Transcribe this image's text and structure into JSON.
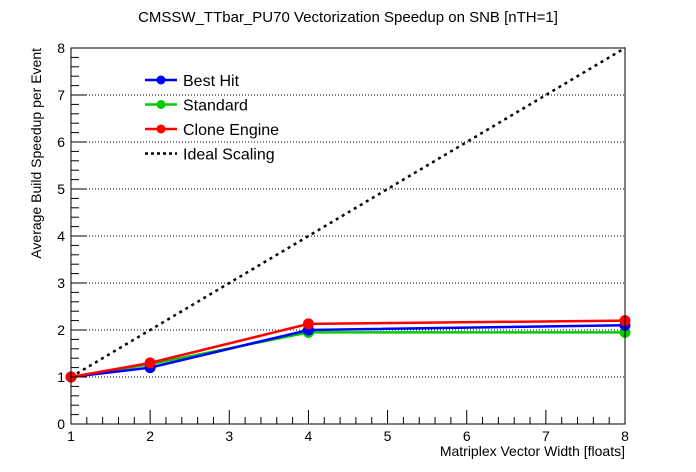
{
  "chart_data": {
    "type": "line",
    "title": "CMSSW_TTbar_PU70 Vectorization Speedup on SNB [nTH=1]",
    "xlabel": "Matriplex Vector Width [floats]",
    "ylabel": "Average Build Speedup per Event",
    "xlim": [
      1,
      8
    ],
    "ylim": [
      0,
      8
    ],
    "xticks": [
      1,
      2,
      3,
      4,
      5,
      6,
      7,
      8
    ],
    "yticks": [
      0,
      1,
      2,
      3,
      4,
      5,
      6,
      7,
      8
    ],
    "grid": "y-dotted",
    "legend_position": "top-left",
    "series": [
      {
        "name": "Best Hit",
        "color": "#0000ff",
        "style": "solid-markers",
        "x": [
          1,
          2,
          4,
          8
        ],
        "values": [
          1.0,
          1.2,
          2.0,
          2.1
        ]
      },
      {
        "name": "Standard",
        "color": "#00cc00",
        "style": "solid-markers",
        "x": [
          1,
          2,
          4,
          8
        ],
        "values": [
          1.0,
          1.27,
          1.95,
          1.95
        ]
      },
      {
        "name": "Clone Engine",
        "color": "#ff0000",
        "style": "solid-markers",
        "x": [
          1,
          2,
          4,
          8
        ],
        "values": [
          1.0,
          1.3,
          2.13,
          2.2
        ]
      },
      {
        "name": "Ideal Scaling",
        "color": "#000000",
        "style": "dotted",
        "x": [
          1,
          8
        ],
        "values": [
          1,
          8
        ]
      }
    ]
  }
}
